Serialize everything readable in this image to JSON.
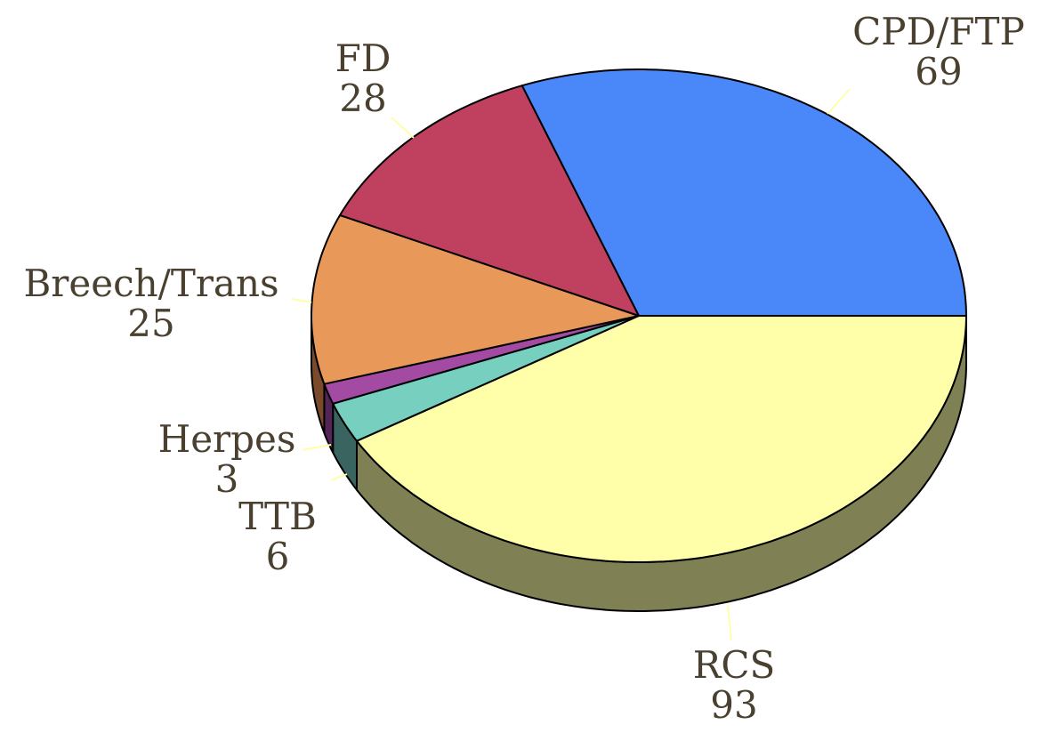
{
  "chart_data": {
    "type": "pie",
    "categories": [
      "RCS",
      "TTB",
      "Herpes",
      "Breech/Trans",
      "FD",
      "CPD/FTP"
    ],
    "values": [
      93,
      6,
      3,
      25,
      28,
      69
    ],
    "colors": [
      "#ffffaa",
      "#77cfc0",
      "#a34ba3",
      "#e89858",
      "#c04060",
      "#4a88fa"
    ],
    "side_colors": [
      "#808055",
      "#3a6460",
      "#55255a",
      "#7a4a2a",
      "#6a2030",
      "#2a4a8a"
    ]
  }
}
